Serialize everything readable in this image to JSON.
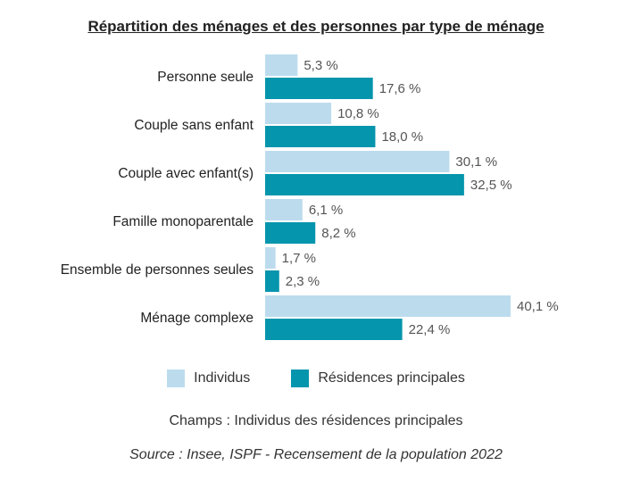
{
  "chart_data": {
    "type": "bar",
    "orientation": "horizontal",
    "title": "Répartition des ménages et des personnes par type de ménage",
    "categories": [
      "Personne seule",
      "Couple sans enfant",
      "Couple avec enfant(s)",
      "Famille monoparentale",
      "Ensemble de personnes seules",
      "Ménage complexe"
    ],
    "series": [
      {
        "name": "Individus",
        "color": "#bcdcee",
        "values": [
          5.3,
          10.8,
          30.1,
          6.1,
          1.7,
          40.1
        ],
        "labels": [
          "5,3 %",
          "10,8 %",
          "30,1 %",
          "6,1 %",
          "1,7 %",
          "40,1 %"
        ]
      },
      {
        "name": "Résidences principales",
        "color": "#0595ad",
        "values": [
          17.6,
          18.0,
          32.5,
          8.2,
          2.3,
          22.4
        ],
        "labels": [
          "17,6 %",
          "18,0 %",
          "32,5 %",
          "8,2 %",
          "2,3 %",
          "22,4 %"
        ]
      }
    ],
    "xlim": [
      0,
      40.1
    ],
    "grid": false,
    "legend_position": "bottom"
  },
  "footer": {
    "note": "Champs : Individus des résidences principales",
    "source": "Source : Insee, ISPF - Recensement de la population 2022"
  }
}
